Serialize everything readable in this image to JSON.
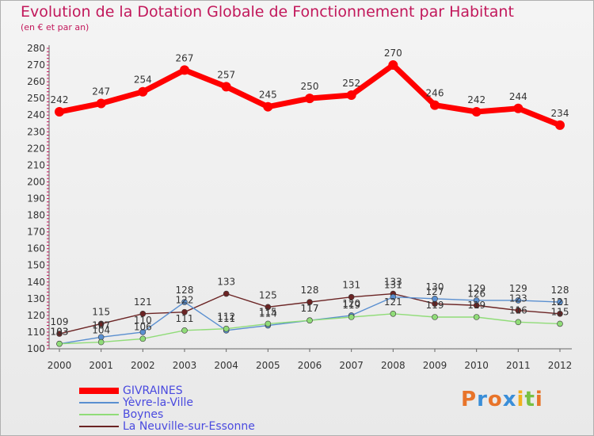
{
  "title": "Evolution de la Dotation Globale de Fonctionnement par Habitant",
  "subtitle": "(en € et par an)",
  "logo": "Proxiti",
  "chart_data": {
    "type": "line",
    "x": [
      "2000",
      "2001",
      "2002",
      "2003",
      "2004",
      "2005",
      "2006",
      "2007",
      "2008",
      "2009",
      "2010",
      "2011",
      "2012"
    ],
    "ylim": [
      100,
      280
    ],
    "yticks": [
      100,
      110,
      120,
      130,
      140,
      150,
      160,
      170,
      180,
      190,
      200,
      210,
      220,
      230,
      240,
      250,
      260,
      270,
      280
    ],
    "grid": false,
    "legend_position": "bottom-left",
    "series": [
      {
        "name": "GIVRAINES",
        "color": "#ff0000",
        "values": [
          242,
          247,
          254,
          267,
          257,
          245,
          250,
          252,
          270,
          246,
          242,
          244,
          234
        ]
      },
      {
        "name": "Yèvre-la-Ville",
        "color": "#5a8fd0",
        "values": [
          103,
          107,
          110,
          128,
          111,
          114,
          117,
          120,
          131,
          130,
          129,
          129,
          128
        ]
      },
      {
        "name": "Boynes",
        "color": "#90dc78",
        "values": [
          103,
          104,
          106,
          111,
          112,
          115,
          117,
          119,
          121,
          119,
          119,
          116,
          115
        ]
      },
      {
        "name": "La Neuville-sur-Essonne",
        "color": "#6b2424",
        "values": [
          109,
          115,
          121,
          122,
          133,
          125,
          128,
          131,
          133,
          127,
          126,
          123,
          121
        ]
      }
    ]
  }
}
